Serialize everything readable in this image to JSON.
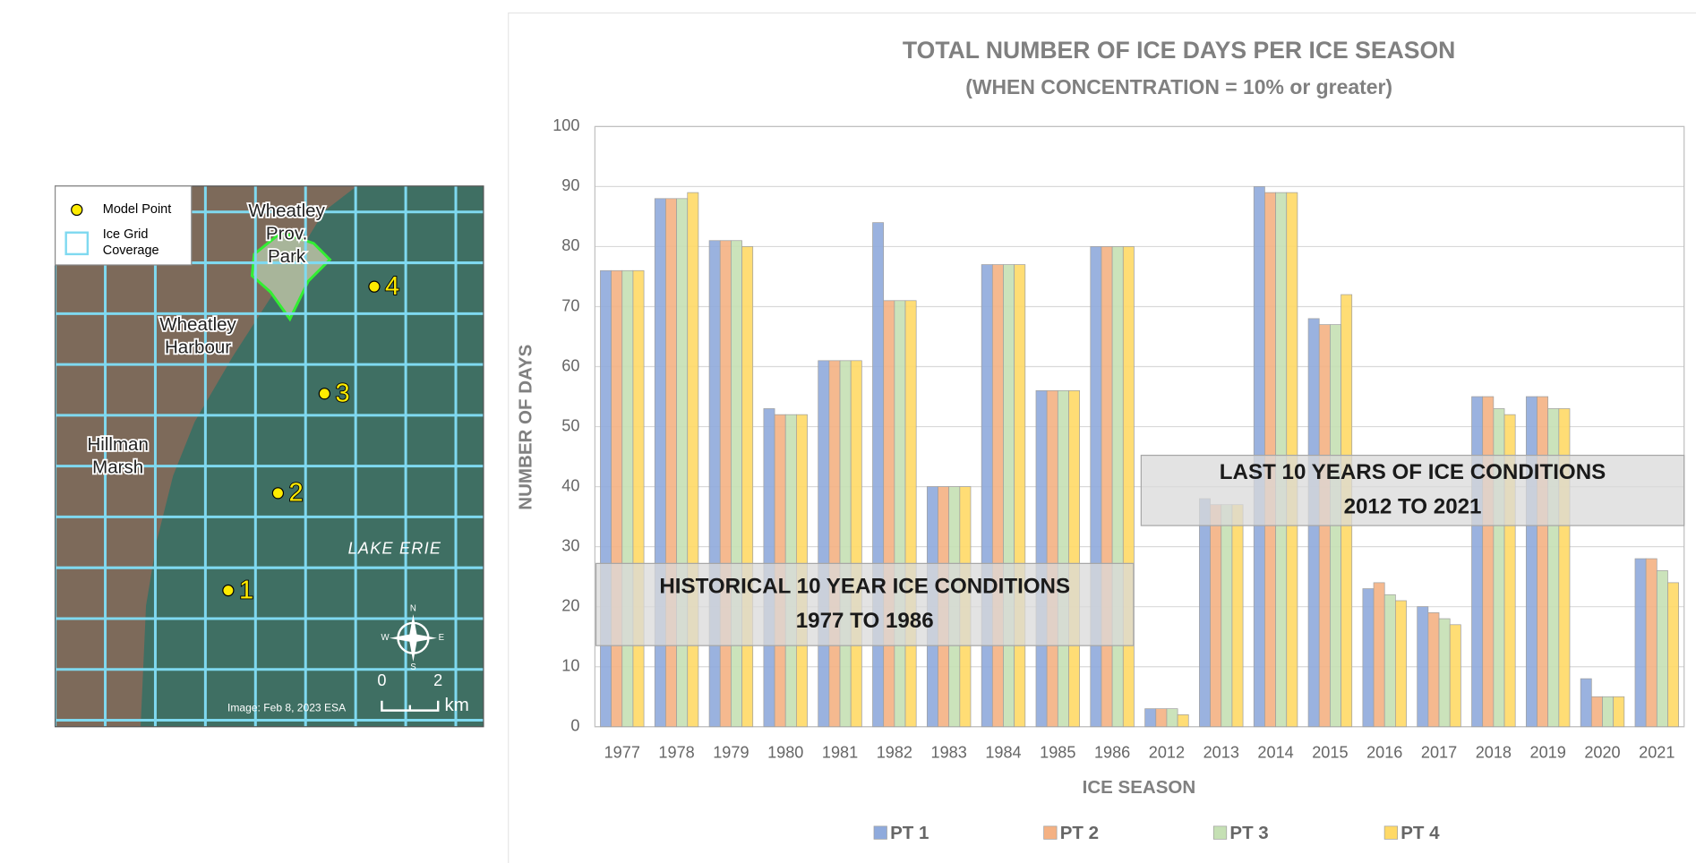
{
  "map": {
    "legend": {
      "point": "Model Point",
      "grid": [
        "Ice Grid",
        "Coverage"
      ]
    },
    "places": [
      {
        "lines": [
          "Wheatley",
          "Prov.",
          "Park"
        ]
      },
      {
        "lines": [
          "Wheatley",
          "Harbour"
        ]
      },
      {
        "lines": [
          "Hillman",
          "Marsh"
        ]
      }
    ],
    "lake": "LAKE ERIE",
    "points": [
      {
        "label": "1"
      },
      {
        "label": "2"
      },
      {
        "label": "3"
      },
      {
        "label": "4"
      }
    ],
    "credit": "Image: Feb 8, 2023 ESA",
    "scale": {
      "start": "0",
      "end": "2",
      "unit": "km"
    },
    "compass": {
      "n": "N",
      "e": "E",
      "s": "S",
      "w": "W"
    }
  },
  "chart_data": {
    "type": "bar",
    "title": "TOTAL NUMBER OF ICE DAYS PER ICE SEASON",
    "subtitle": "(WHEN CONCENTRATION  = 10% or greater)",
    "x_label": "ICE SEASON",
    "y_label": "NUMBER OF DAYS",
    "categories": [
      "1977",
      "1978",
      "1979",
      "1980",
      "1981",
      "1982",
      "1983",
      "1984",
      "1985",
      "1986",
      "2012",
      "2013",
      "2014",
      "2015",
      "2016",
      "2017",
      "2018",
      "2019",
      "2020",
      "2021"
    ],
    "series": [
      {
        "name": "PT 1",
        "color": "#8faadc",
        "values": [
          76,
          88,
          81,
          53,
          61,
          84,
          40,
          77,
          56,
          80,
          3,
          38,
          90,
          68,
          23,
          20,
          55,
          55,
          8,
          28
        ]
      },
      {
        "name": "PT 2",
        "color": "#f4b183",
        "values": [
          76,
          88,
          81,
          52,
          61,
          71,
          40,
          77,
          56,
          80,
          3,
          37,
          89,
          67,
          24,
          19,
          55,
          55,
          5,
          28
        ]
      },
      {
        "name": "PT 3",
        "color": "#c5e0b4",
        "values": [
          76,
          88,
          81,
          52,
          61,
          71,
          40,
          77,
          56,
          80,
          3,
          37,
          89,
          67,
          22,
          18,
          53,
          53,
          5,
          26
        ]
      },
      {
        "name": "PT 4",
        "color": "#ffd966",
        "values": [
          76,
          89,
          80,
          52,
          61,
          71,
          40,
          77,
          56,
          80,
          2,
          37,
          89,
          72,
          21,
          17,
          52,
          53,
          5,
          24
        ]
      }
    ],
    "ylim": [
      0,
      100
    ],
    "yticks": [
      0,
      10,
      20,
      30,
      40,
      50,
      60,
      70,
      80,
      90,
      100
    ],
    "grid": true,
    "legend": "bottom",
    "annotations": [
      [
        "HISTORICAL 10 YEAR ICE CONDITIONS",
        "1977 TO 1986"
      ],
      [
        "LAST 10 YEARS OF ICE CONDITIONS",
        "2012 TO 2021"
      ]
    ]
  }
}
